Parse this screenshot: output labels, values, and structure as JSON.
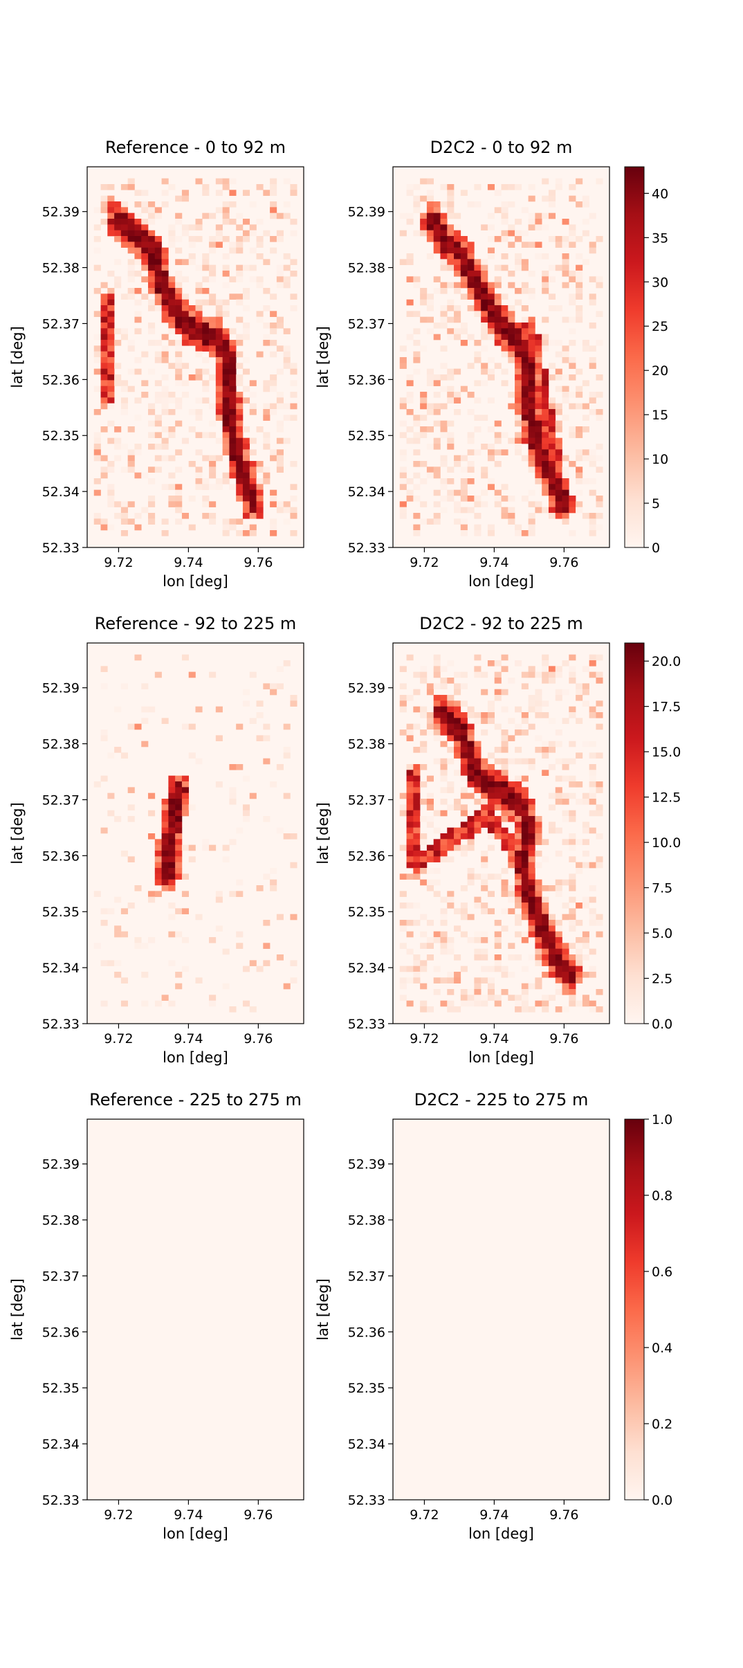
{
  "colormap": {
    "name": "Reds",
    "stops": [
      "#fff5f0",
      "#fee0d2",
      "#fcbba1",
      "#fc9272",
      "#fb6a4a",
      "#ef3b2c",
      "#cb181d",
      "#a50f15",
      "#67000d"
    ]
  },
  "chart_data": [
    {
      "type": "heatmap",
      "title": "Reference - 0 to 92 m",
      "xlabel": "lon [deg]",
      "ylabel": "lat [deg]",
      "xlim": [
        9.711,
        9.773
      ],
      "ylim": [
        52.33,
        52.398
      ],
      "xticks": [
        "9.72",
        "9.74",
        "9.76"
      ],
      "yticks": [
        "52.33",
        "52.34",
        "52.35",
        "52.36",
        "52.37",
        "52.38",
        "52.39"
      ],
      "vmax": 43,
      "path": [
        [
          9.7195,
          52.3885
        ],
        [
          9.726,
          52.385
        ],
        [
          9.73,
          52.383
        ],
        [
          9.732,
          52.3775
        ],
        [
          9.736,
          52.3725
        ],
        [
          9.741,
          52.369
        ],
        [
          9.748,
          52.3675
        ],
        [
          9.751,
          52.3645
        ],
        [
          9.751,
          52.359
        ],
        [
          9.7525,
          52.3505
        ],
        [
          9.755,
          52.3445
        ],
        [
          9.7585,
          52.338
        ]
      ],
      "secondary": [
        [
          9.717,
          52.374
        ],
        [
          9.7165,
          52.366
        ],
        [
          9.717,
          52.3575
        ]
      ]
    },
    {
      "type": "heatmap",
      "title": "D2C2 - 0 to 92 m",
      "xlabel": "lon [deg]",
      "ylabel": "lat [deg]",
      "xlim": [
        9.711,
        9.773
      ],
      "ylim": [
        52.33,
        52.398
      ],
      "xticks": [
        "9.72",
        "9.74",
        "9.76"
      ],
      "yticks": [
        "52.33",
        "52.34",
        "52.35",
        "52.36",
        "52.37",
        "52.38",
        "52.39"
      ],
      "colorbar_ticks": [
        "0",
        "5",
        "10",
        "15",
        "20",
        "25",
        "30",
        "35",
        "40"
      ],
      "vmax": 43,
      "path": [
        [
          9.7225,
          52.3885
        ],
        [
          9.7255,
          52.385
        ],
        [
          9.7305,
          52.3825
        ],
        [
          9.733,
          52.3795
        ],
        [
          9.7355,
          52.3765
        ],
        [
          9.741,
          52.3705
        ],
        [
          9.747,
          52.3665
        ],
        [
          9.75,
          52.3625
        ],
        [
          9.749,
          52.358
        ],
        [
          9.7505,
          52.3535
        ],
        [
          9.7525,
          52.3475
        ],
        [
          9.756,
          52.3435
        ],
        [
          9.7595,
          52.338
        ]
      ],
      "secondary": [
        [
          9.7505,
          52.3695
        ],
        [
          9.7555,
          52.3525
        ],
        [
          9.758,
          52.3465
        ],
        [
          9.758,
          52.339
        ]
      ]
    },
    {
      "type": "heatmap",
      "title": "Reference - 92 to 225 m",
      "xlabel": "lon [deg]",
      "ylabel": "lat [deg]",
      "xlim": [
        9.711,
        9.773
      ],
      "ylim": [
        52.33,
        52.398
      ],
      "xticks": [
        "9.72",
        "9.74",
        "9.76"
      ],
      "yticks": [
        "52.33",
        "52.34",
        "52.35",
        "52.36",
        "52.37",
        "52.38",
        "52.39"
      ],
      "vmax": 21,
      "path": [
        [
          9.7375,
          52.3715
        ],
        [
          9.736,
          52.3685
        ],
        [
          9.7355,
          52.3645
        ],
        [
          9.734,
          52.361
        ],
        [
          9.734,
          52.3565
        ]
      ],
      "secondary": []
    },
    {
      "type": "heatmap",
      "title": "D2C2 - 92 to 225 m",
      "xlabel": "lon [deg]",
      "ylabel": "lat [deg]",
      "xlim": [
        9.711,
        9.773
      ],
      "ylim": [
        52.33,
        52.398
      ],
      "xticks": [
        "9.72",
        "9.74",
        "9.76"
      ],
      "yticks": [
        "52.33",
        "52.34",
        "52.35",
        "52.36",
        "52.37",
        "52.38",
        "52.39"
      ],
      "colorbar_ticks": [
        "0.0",
        "2.5",
        "5.0",
        "7.5",
        "10.0",
        "12.5",
        "15.0",
        "17.5",
        "20.0"
      ],
      "vmax": 21,
      "path": [
        [
          9.725,
          52.3855
        ],
        [
          9.73,
          52.3825
        ],
        [
          9.7325,
          52.3785
        ],
        [
          9.7345,
          52.375
        ],
        [
          9.738,
          52.373
        ],
        [
          9.743,
          52.371
        ],
        [
          9.748,
          52.3685
        ],
        [
          9.75,
          52.3645
        ],
        [
          9.748,
          52.3595
        ],
        [
          9.749,
          52.355
        ],
        [
          9.7525,
          52.349
        ],
        [
          9.755,
          52.3455
        ],
        [
          9.7585,
          52.341
        ],
        [
          9.7615,
          52.3385
        ]
      ],
      "secondary": [
        [
          9.7175,
          52.3745
        ],
        [
          9.717,
          52.3665
        ],
        [
          9.7175,
          52.3585
        ],
        [
          9.7385,
          52.3675
        ],
        [
          9.7425,
          52.3635
        ],
        [
          9.7465,
          52.361
        ]
      ]
    },
    {
      "type": "heatmap",
      "title": "Reference - 225 to 275 m",
      "xlabel": "lon [deg]",
      "ylabel": "lat [deg]",
      "xlim": [
        9.711,
        9.773
      ],
      "ylim": [
        52.33,
        52.398
      ],
      "xticks": [
        "9.72",
        "9.74",
        "9.76"
      ],
      "yticks": [
        "52.33",
        "52.34",
        "52.35",
        "52.36",
        "52.37",
        "52.38",
        "52.39"
      ],
      "vmax": 1,
      "path": [],
      "secondary": []
    },
    {
      "type": "heatmap",
      "title": "D2C2 - 225 to 275 m",
      "xlabel": "lon [deg]",
      "ylabel": "lat [deg]",
      "xlim": [
        9.711,
        9.773
      ],
      "ylim": [
        52.33,
        52.398
      ],
      "xticks": [
        "9.72",
        "9.74",
        "9.76"
      ],
      "yticks": [
        "52.33",
        "52.34",
        "52.35",
        "52.36",
        "52.37",
        "52.38",
        "52.39"
      ],
      "colorbar_ticks": [
        "0.0",
        "0.2",
        "0.4",
        "0.6",
        "0.8",
        "1.0"
      ],
      "vmax": 1,
      "path": [],
      "secondary": []
    }
  ]
}
